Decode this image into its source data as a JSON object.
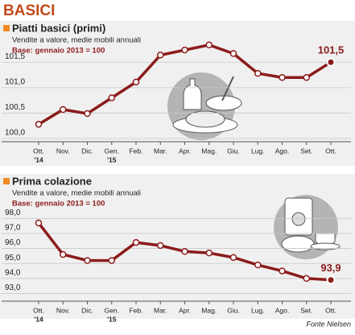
{
  "header": "BASICI",
  "source": "Fonte Nielsen",
  "chart_data": [
    {
      "type": "line",
      "title": "Piatti basici (primi)",
      "subtitle": "Vendite a valore, medie mobili annuali",
      "note": "Base: gennaio 2013 = 100",
      "categories": [
        "Ott.",
        "Nov.",
        "Dic.",
        "Gen.",
        "Feb.",
        "Mar.",
        "Apr.",
        "Mag.",
        "Giu.",
        "Lug.",
        "Ago.",
        "Set.",
        "Ott."
      ],
      "category_years": [
        "'14",
        null,
        null,
        "'15",
        null,
        null,
        null,
        null,
        null,
        null,
        null,
        null,
        null
      ],
      "series": [
        {
          "name": "Piatti basici (primi)",
          "color": "#8b1c1c",
          "values": [
            100.28,
            100.57,
            100.49,
            100.8,
            101.11,
            101.64,
            101.74,
            101.84,
            101.67,
            101.28,
            101.2,
            101.2,
            101.5
          ],
          "value_labels": [
            null,
            null,
            null,
            null,
            null,
            null,
            null,
            null,
            null,
            null,
            null,
            null,
            "101,5"
          ]
        }
      ],
      "ylim": [
        100,
        101.9
      ],
      "yticks": [
        {
          "value": 100,
          "label": "100,0"
        },
        {
          "value": 100.5,
          "label": "100,5"
        },
        {
          "value": 101,
          "label": "101,0"
        },
        {
          "value": 101.5,
          "label": "101,5"
        }
      ],
      "grid": true
    },
    {
      "type": "line",
      "title": "Prima colazione",
      "subtitle": "Vendite a valore, medie mobili annuali",
      "note": "Base: gennaio 2013 = 100",
      "categories": [
        "Ott.",
        "Nov.",
        "Dic.",
        "Gen.",
        "Feb.",
        "Mar.",
        "Apr.",
        "Mag.",
        "Giu.",
        "Lug.",
        "Ago.",
        "Set.",
        "Ott."
      ],
      "category_years": [
        "'14",
        null,
        null,
        "'15",
        null,
        null,
        null,
        null,
        null,
        null,
        null,
        null,
        null
      ],
      "series": [
        {
          "name": "Prima colazione",
          "color": "#8b1c1c",
          "values": [
            97.7,
            95.6,
            95.2,
            95.2,
            96.4,
            96.2,
            95.8,
            95.7,
            95.4,
            94.9,
            94.5,
            94.0,
            93.9
          ],
          "value_labels": [
            null,
            null,
            null,
            null,
            null,
            null,
            null,
            null,
            null,
            null,
            null,
            null,
            "93,9"
          ]
        }
      ],
      "ylim": [
        92.7,
        98.5
      ],
      "yticks": [
        {
          "value": 93,
          "label": "93,0"
        },
        {
          "value": 94,
          "label": "94,0"
        },
        {
          "value": 95,
          "label": "95,0"
        },
        {
          "value": 96,
          "label": "96,0"
        },
        {
          "value": 97,
          "label": "97,0"
        },
        {
          "value": 98,
          "label": "98,0"
        }
      ],
      "grid": true
    }
  ]
}
